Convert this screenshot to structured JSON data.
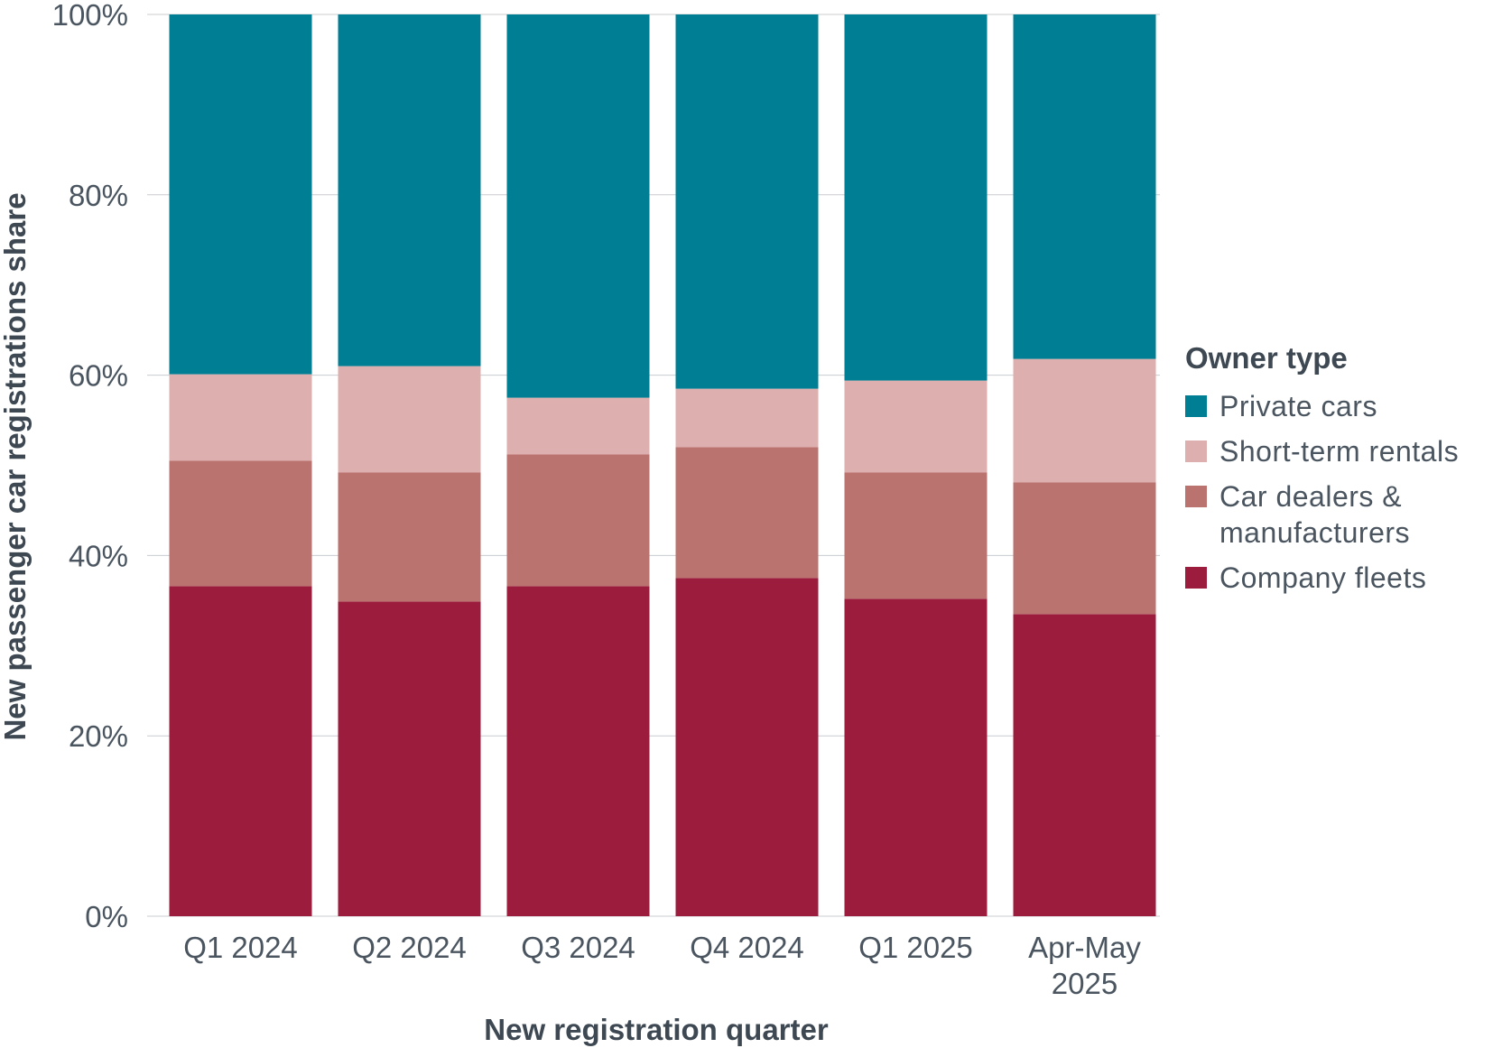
{
  "chart_data": {
    "type": "bar",
    "stacked": true,
    "categories": [
      "Q1 2024",
      "Q2 2024",
      "Q3 2024",
      "Q4 2024",
      "Q1 2025",
      "Apr-May\n2025"
    ],
    "series": [
      {
        "name": "Company fleets",
        "color": "#9c1c3e",
        "values": [
          36.6,
          34.9,
          36.6,
          37.5,
          35.2,
          33.5
        ]
      },
      {
        "name": "Car dealers & manufacturers",
        "color": "#bb7370",
        "values": [
          13.9,
          14.3,
          14.6,
          14.5,
          14.0,
          14.6
        ]
      },
      {
        "name": "Short-term rentals",
        "color": "#ddafae",
        "values": [
          9.6,
          11.8,
          6.3,
          6.5,
          10.2,
          13.7
        ]
      },
      {
        "name": "Private cars",
        "color": "#007f94",
        "values": [
          39.9,
          39.0,
          42.5,
          41.5,
          40.6,
          38.2
        ]
      }
    ],
    "legend_order": [
      "Private cars",
      "Short-term rentals",
      "Car dealers & manufacturers",
      "Company fleets"
    ],
    "legend_title": "Owner type",
    "xlabel": "New registration quarter",
    "ylabel": "New passenger car registrations share",
    "ylim": [
      0,
      100
    ],
    "yticks": [
      0,
      20,
      40,
      60,
      80,
      100
    ],
    "ytick_labels": [
      "0%",
      "20%",
      "40%",
      "60%",
      "80%",
      "100%"
    ],
    "grid": true,
    "legend_position": "right"
  },
  "legend": {
    "title": "Owner type",
    "items": [
      {
        "label": "Private cars",
        "color": "#007f94"
      },
      {
        "label": "Short-term rentals",
        "color": "#ddafae"
      },
      {
        "label": "Car dealers & manufacturers",
        "color": "#bb7370"
      },
      {
        "label": "Company fleets",
        "color": "#9c1c3e"
      }
    ]
  }
}
